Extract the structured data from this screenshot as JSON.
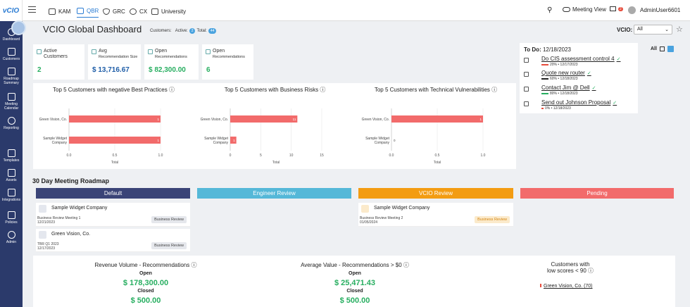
{
  "topbar": {
    "tabs": [
      {
        "label": "KAM",
        "icon": "kam-icon"
      },
      {
        "label": "QBR",
        "icon": "qbr-icon"
      },
      {
        "label": "GRC",
        "icon": "grc-icon"
      },
      {
        "label": "CX",
        "icon": "cx-icon"
      },
      {
        "label": "University",
        "icon": "university-icon"
      }
    ],
    "meeting_view": "Meeting View",
    "notif_count": "2",
    "user": "AdminUser6601"
  },
  "sidebar": {
    "items": [
      "Dashboard",
      "Customers",
      "Roadmap Summary",
      "Meeting Calendar",
      "Reporting",
      "Templates",
      "Assets",
      "Integrations",
      "Policies",
      "Admin"
    ]
  },
  "header": {
    "title": "VCIO Global Dashboard",
    "customers_label": "Customers:",
    "active_label": "Active:",
    "active_count": "2",
    "total_label": "Total:",
    "total_count": "44",
    "vcio_label": "VCIO:",
    "vcio_value": "All"
  },
  "kpis": [
    {
      "label": "Active",
      "label2": "Customers",
      "value": "2"
    },
    {
      "label": "Avg",
      "label2": "Recommendation Size",
      "value": "$ 13,716.67"
    },
    {
      "label": "Open",
      "label2": "Recommendations",
      "value": "$ 82,300.00"
    },
    {
      "label": "Open",
      "label2": "Recommendations",
      "value": "6"
    }
  ],
  "chart_data": [
    {
      "type": "bar",
      "orientation": "horizontal",
      "title": "Top 5 Customers with negative Best Practices",
      "categories": [
        "Green Vision, Co.",
        "Sample Widget Company"
      ],
      "values": [
        1,
        1
      ],
      "xlabel": "Total",
      "xlim": [
        0,
        1
      ],
      "xticks": [
        "0.0",
        "0.5",
        "1.0"
      ],
      "color": "#f26b6b"
    },
    {
      "type": "bar",
      "orientation": "horizontal",
      "title": "Top 5 Customers with Business Risks",
      "categories": [
        "Green Vision, Co.",
        "Sample Widget Company"
      ],
      "values": [
        11,
        1
      ],
      "xlabel": "Total",
      "xlim": [
        0,
        15
      ],
      "xticks": [
        "0",
        "5",
        "10",
        "15"
      ],
      "color": "#f26b6b"
    },
    {
      "type": "bar",
      "orientation": "horizontal",
      "title": "Top 5 Customers with Technical Vulnerabilities",
      "categories": [
        "Green Vision, Co.",
        "Sample Widget Company"
      ],
      "values": [
        1,
        0
      ],
      "xlabel": "Total",
      "xlim": [
        0,
        1
      ],
      "xticks": [
        "0.0",
        "0.5",
        "1.0"
      ],
      "color": "#f26b6b"
    }
  ],
  "todo": {
    "label": "To Do:",
    "date": "12/18/2023",
    "filter": "All",
    "items": [
      {
        "title": "Do CIS assessment control 4",
        "pct": "20%",
        "date": "12/17/2023",
        "color": "#e74c3c"
      },
      {
        "title": "Quote new router",
        "pct": "60%",
        "date": "12/18/2023",
        "color": "#222222"
      },
      {
        "title": "Contact Jim @ Dell",
        "pct": "80%",
        "date": "12/18/2023",
        "color": "#27ae60"
      },
      {
        "title": "Send out Johnson Proposal",
        "pct": "0%",
        "date": "12/18/2023",
        "color": "#e74c3c"
      }
    ]
  },
  "roadmap": {
    "title": "30 Day Meeting Roadmap",
    "columns": [
      {
        "label": "Default",
        "color": "#3a4477"
      },
      {
        "label": "Engineer Review",
        "color": "#55b8d8"
      },
      {
        "label": "VCIO Review",
        "color": "#f39c12"
      },
      {
        "label": "Pending",
        "color": "#f26b6b"
      }
    ],
    "default_cards": [
      {
        "name": "Sample Widget Company",
        "meeting": "Business Review Meeting 1",
        "date": "12/21/2023",
        "tag": "Business Review"
      },
      {
        "name": "Green Vision, Co.",
        "meeting": "TBR Q1 2023",
        "date": "12/17/2023",
        "tag": "Business Review"
      }
    ],
    "vcio_cards": [
      {
        "name": "Sample Widget Company",
        "meeting": "Business Review Meeting 2",
        "date": "01/05/2024",
        "tag": "Business Review"
      }
    ]
  },
  "revenue": {
    "title": "Revenue Volume - Recommendations",
    "open_label": "Open",
    "open_value": "$ 178,300.00",
    "closed_label": "Closed",
    "closed_value": "$ 500.00"
  },
  "average": {
    "title": "Average Value - Recommendations > $0",
    "open_label": "Open",
    "open_value": "$ 25,471.43",
    "closed_label": "Closed",
    "closed_value": "$ 500.00"
  },
  "low_scores": {
    "title1": "Customers with",
    "title2": "low scores < 90",
    "link": "Green Vision, Co. (70)"
  }
}
